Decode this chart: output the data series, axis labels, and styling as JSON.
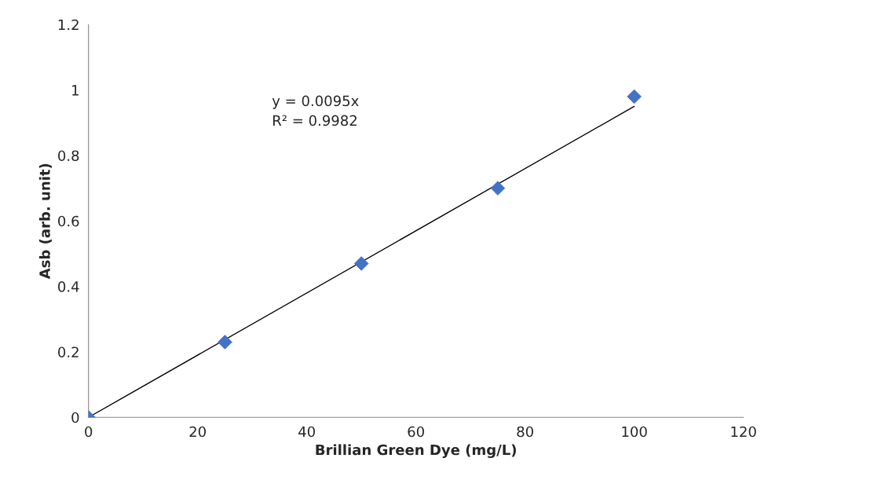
{
  "chart_data": {
    "type": "scatter",
    "xlabel": "Brillian Green Dye (mg/L)",
    "ylabel": "Asb (arb. unit)",
    "xlim": [
      0,
      120
    ],
    "ylim": [
      0,
      1.2
    ],
    "xticks": [
      0,
      20,
      40,
      60,
      80,
      100,
      120
    ],
    "yticks": [
      0,
      0.2,
      0.4,
      0.6,
      0.8,
      1,
      1.2
    ],
    "grid": false,
    "legend": false,
    "marker": "diamond",
    "series": [
      {
        "color": "#4472c4",
        "x": [
          0,
          25,
          50,
          75,
          100
        ],
        "values": [
          0,
          0.23,
          0.47,
          0.7,
          0.98
        ]
      },
      {
        "type": "line",
        "color": "#000000",
        "x": [
          0,
          100
        ],
        "values": [
          0,
          0.95
        ],
        "marker": "none",
        "line_style": "solid"
      }
    ],
    "annotations": [
      "y = 0.0095x",
      "R² = 0.9982"
    ]
  }
}
